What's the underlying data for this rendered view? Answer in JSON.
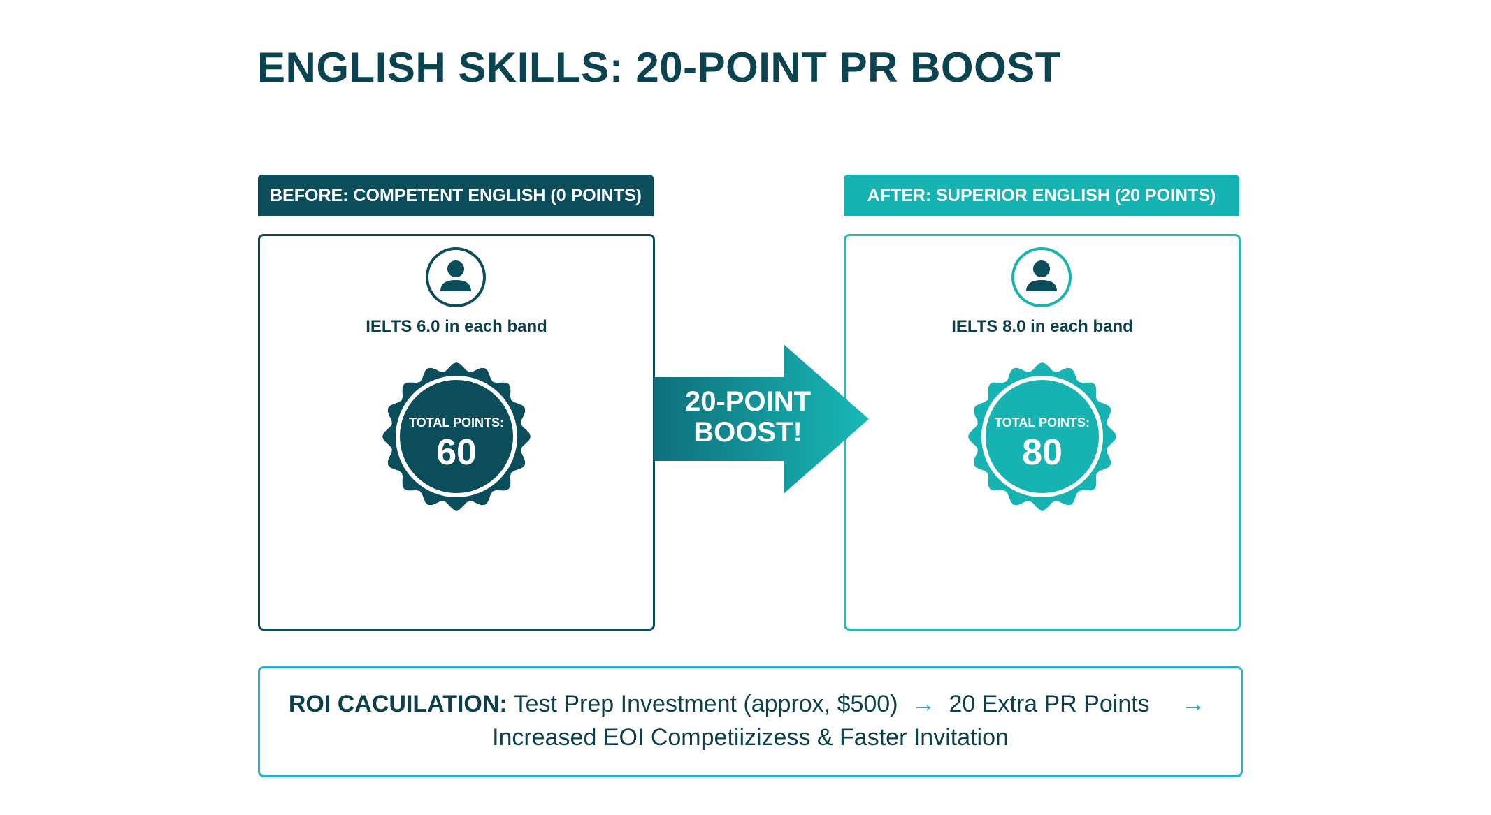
{
  "title": "ENGLISH SKILLS: 20-POINT PR BOOST",
  "colors": {
    "before": "#0c4d5b",
    "after": "#17b3b3",
    "roi_border": "#2aaed0"
  },
  "before": {
    "header": "BEFORE: COMPETENT ENGLISH (0 POINTS)",
    "icon": "person-icon",
    "ielts": "IELTS 6.0 in each band",
    "badge_label": "TOTAL POINTS:",
    "badge_value": "60"
  },
  "after": {
    "header": "AFTER: SUPERIOR ENGLISH (20 POINTS)",
    "icon": "person-icon",
    "ielts": "IELTS 8.0 in each band",
    "badge_label": "TOTAL POINTS:",
    "badge_value": "80"
  },
  "boost": {
    "line1": "20-POINT",
    "line2": "BOOST!"
  },
  "roi": {
    "label": "ROI CACUILATION:",
    "step1": "Test Prep Investment (approx, $500)",
    "arrow": "→",
    "step2": "20 Extra PR Points",
    "step3": "Increased EOI Competiizizess & Faster Invitation"
  }
}
